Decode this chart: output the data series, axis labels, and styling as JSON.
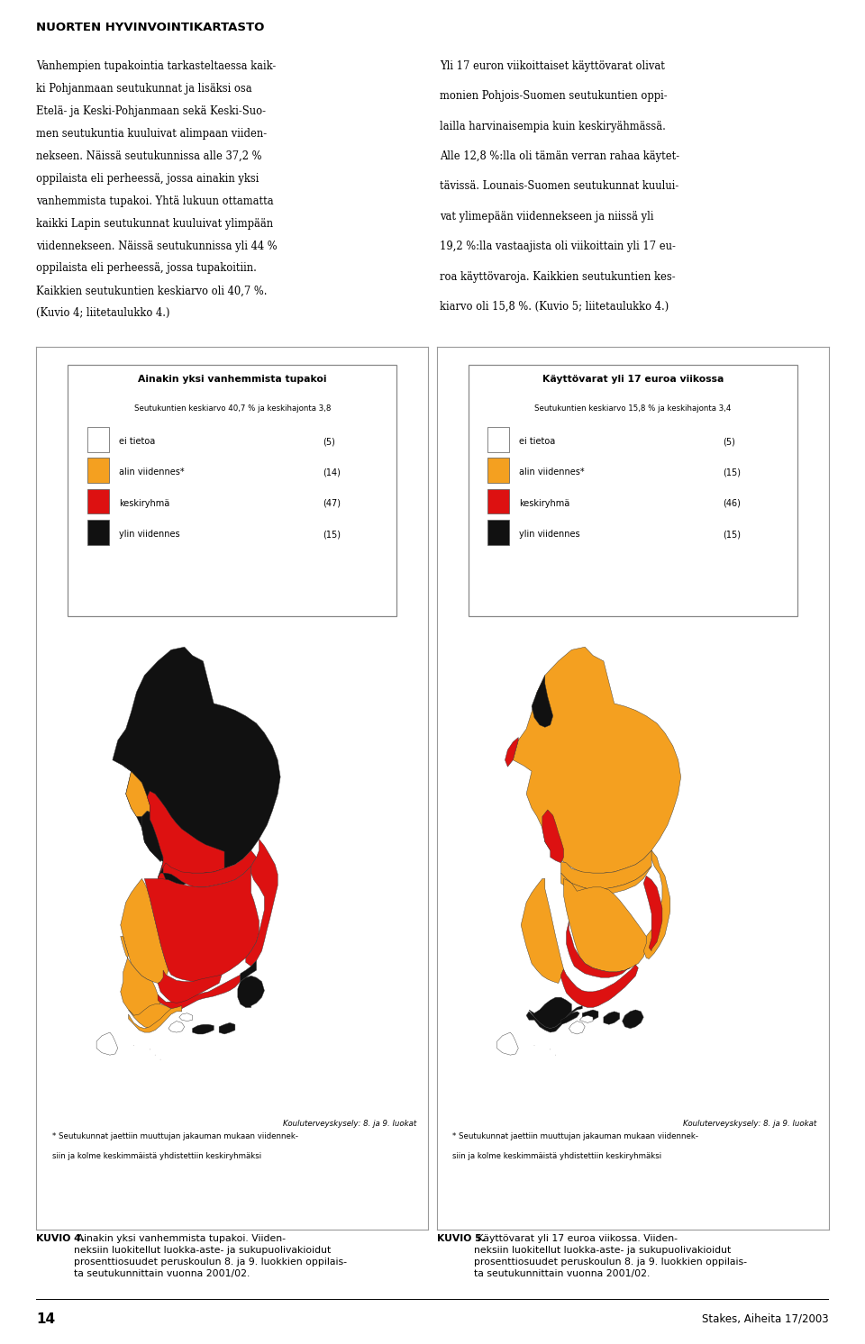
{
  "page_title": "NUORTEN HYVINVOINTIKARTASTO",
  "left_text_lines": [
    "Vanhempien tupakointia tarkasteltaessa kaik-",
    "ki Pohjanmaan seutukunnat ja lisäksi osa",
    "Etelä- ja Keski-Pohjanmaan sekä Keski-Suo-",
    "men seutukuntia kuuluivat alimpaan viiden-",
    "nekseen. Näissä seutukunnissa alle 37,2 %",
    "oppilaista eli perheessä, jossa ainakin yksi",
    "vanhemmista tupakoi. Yhtä lukuun ottamatta",
    "kaikki Lapin seutukunnat kuuluivat ylimpään",
    "viidennekseen. Näissä seutukunnissa yli 44 %",
    "oppilaista eli perheessä, jossa tupakoitiin.",
    "Kaikkien seutukuntien keskiarvo oli 40,7 %.",
    "(Kuvio 4; liitetaulukko 4.)"
  ],
  "right_text_lines": [
    "Yli 17 euron viikoittaiset käyttövarat olivat",
    "monien Pohjois-Suomen seutukuntien oppi-",
    "lailla harvinaisempia kuin keskiryähmässä.",
    "Alle 12,8 %:lla oli tämän verran rahaa käytet-",
    "tävissä. Lounais-Suomen seutukunnat kuului-",
    "vat ylimepään viidennekseen ja niissä yli",
    "19,2 %:lla vastaajista oli viikoittain yli 17 eu-",
    "roa käyttövaroja. Kaikkien seutukuntien kes-",
    "kiarvo oli 15,8 %. (Kuvio 5; liitetaulukko 4.)"
  ],
  "map1_title": "Ainakin yksi vanhemmista tupakoi",
  "map1_subtitle": "Seutukuntien keskiarvo 40,7 % ja keskihajonta 3,8",
  "map1_legend": [
    {
      "label": "ei tietoa",
      "count": "(5)",
      "color": "#ffffff"
    },
    {
      "label": "alin viidennes*",
      "count": "(14)",
      "color": "#f4a020"
    },
    {
      "label": "keskiryhmä",
      "count": "(47)",
      "color": "#dd1111"
    },
    {
      "label": "ylin viidennes",
      "count": "(15)",
      "color": "#111111"
    }
  ],
  "map2_title": "Käyttövarat yli 17 euroa viikossa",
  "map2_subtitle": "Seutukuntien keskiarvo 15,8 % ja keskihajonta 3,4",
  "map2_legend": [
    {
      "label": "ei tietoa",
      "count": "(5)",
      "color": "#ffffff"
    },
    {
      "label": "alin viidennes*",
      "count": "(15)",
      "color": "#f4a020"
    },
    {
      "label": "keskiryhmä",
      "count": "(46)",
      "color": "#dd1111"
    },
    {
      "label": "ylin viidennes",
      "count": "(15)",
      "color": "#111111"
    }
  ],
  "map_source": "Kouluterveyskysely: 8. ja 9. luokat",
  "footnote_line1": "* Seutukunnat jaettiin muuttujan jakauman mukaan viidennek-",
  "footnote_line2": "siin ja kolme keskimmäistä yhdistettiin keskiryhmäksi",
  "caption1_bold": "KUVIO 4.",
  "caption1_rest": " Ainakin yksi vanhemmista tupakoi. Viiden-\nneksiin luokitellut luokka-aste- ja sukupuolivakioidut\nprosenttiosuudet peruskoulun 8. ja 9. luokkien oppilais-\nta seutukunnittain vuonna 2001/02.",
  "caption2_bold": "KUVIO 5.",
  "caption2_rest": " Käyttövarat yli 17 euroa viikossa. Viiden-\nneksiin luokitellut luokka-aste- ja sukupuolivakioidut\nprosenttiosuudet peruskoulun 8. ja 9. luokkien oppilais-\nta seutukunnittain vuonna 2001/02.",
  "page_number": "14",
  "publisher": "Stakes, Aiheita 17/2003",
  "bg_color": "#ffffff",
  "text_color": "#000000"
}
